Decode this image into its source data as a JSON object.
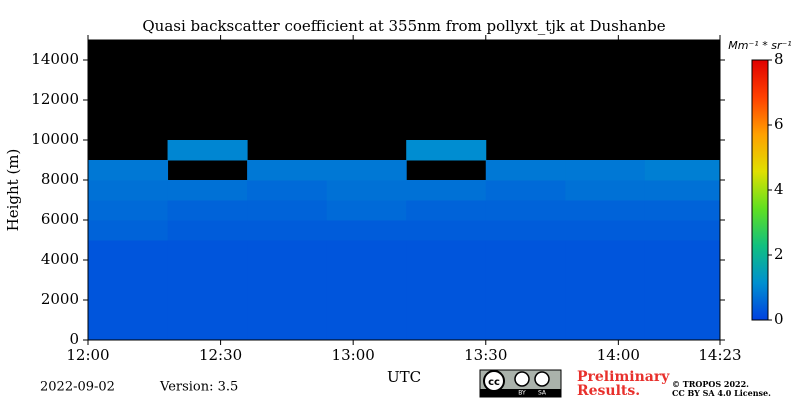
{
  "chart_data": {
    "type": "heatmap",
    "title": "Quasi backscatter coefficient at 355nm from pollyxt_tjk at Dushanbe",
    "y_label": "Height (m)",
    "x_label": "UTC",
    "colorbar_label": "Mm⁻¹ * sr⁻¹",
    "date": "2022-09-02",
    "version": "Version: 3.5",
    "badge": [
      "cc",
      "BY",
      "SA"
    ],
    "notice": [
      "Preliminary",
      "Results."
    ],
    "copyright": [
      "© TROPOS 2022.",
      "CC BY SA 4.0 License."
    ],
    "background": "#000000",
    "xlim": [
      0,
      143
    ],
    "xticks": [
      {
        "value": 0,
        "label": "12:00"
      },
      {
        "value": 30,
        "label": "12:30"
      },
      {
        "value": 60,
        "label": "13:00"
      },
      {
        "value": 90,
        "label": "13:30"
      },
      {
        "value": 120,
        "label": "14:00"
      },
      {
        "value": 143,
        "label": "14:23"
      }
    ],
    "ylim": [
      0,
      15000
    ],
    "yticks": [
      0,
      2000,
      4000,
      6000,
      8000,
      10000,
      12000,
      14000
    ],
    "zlim": [
      0,
      8
    ],
    "zticks": [
      0,
      2,
      4,
      6,
      8
    ],
    "colormap": [
      "#0040e0",
      "#0090d0",
      "#10c080",
      "#60e020",
      "#e0e000",
      "#ffa000",
      "#ff4000",
      "#e00000"
    ],
    "x_bins": [
      0,
      18,
      36,
      54,
      72,
      90,
      108,
      126,
      143
    ],
    "y_bins": [
      0,
      1000,
      2000,
      3000,
      4000,
      5000,
      6000,
      7000,
      8000,
      9000,
      10000,
      11000,
      12000,
      13000,
      14000,
      15000
    ],
    "z": [
      [
        0.3,
        0.3,
        0.3,
        0.3,
        0.3,
        0.3,
        0.3,
        0.3
      ],
      [
        0.3,
        0.3,
        0.3,
        0.3,
        0.3,
        0.3,
        0.3,
        0.3
      ],
      [
        0.3,
        0.3,
        0.3,
        0.3,
        0.3,
        0.3,
        0.3,
        0.3
      ],
      [
        0.3,
        0.3,
        0.3,
        0.3,
        0.3,
        0.3,
        0.3,
        0.3
      ],
      [
        0.3,
        0.3,
        0.3,
        0.3,
        0.3,
        0.3,
        0.3,
        0.3
      ],
      [
        0.5,
        0.4,
        0.4,
        0.4,
        0.4,
        0.4,
        0.4,
        0.4
      ],
      [
        0.6,
        0.5,
        0.5,
        0.6,
        0.5,
        0.5,
        0.5,
        0.5
      ],
      [
        0.7,
        0.7,
        0.6,
        0.7,
        0.7,
        0.6,
        0.7,
        0.7
      ],
      [
        0.8,
        null,
        0.8,
        0.8,
        null,
        0.8,
        0.8,
        0.9
      ],
      [
        null,
        1.0,
        null,
        null,
        1.1,
        null,
        null,
        null
      ],
      [
        null,
        null,
        null,
        null,
        null,
        null,
        null,
        null
      ],
      [
        null,
        null,
        null,
        null,
        null,
        null,
        null,
        null
      ],
      [
        null,
        null,
        null,
        null,
        null,
        null,
        null,
        null
      ],
      [
        null,
        null,
        null,
        null,
        null,
        null,
        null,
        null
      ],
      [
        null,
        null,
        null,
        null,
        null,
        null,
        null,
        null
      ]
    ]
  }
}
